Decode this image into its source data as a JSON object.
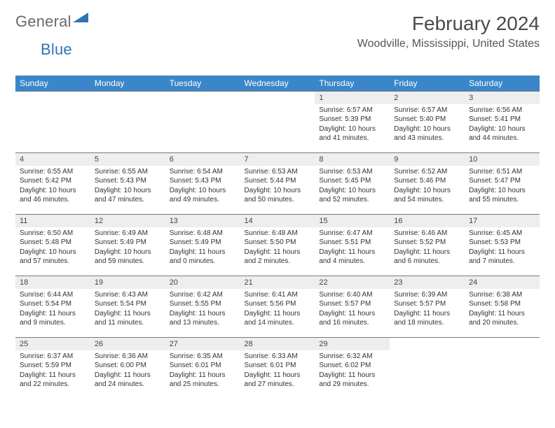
{
  "logo": {
    "word1": "General",
    "word2": "Blue",
    "triangle_color": "#2f74b5",
    "text_color_gray": "#6a6a6a"
  },
  "header": {
    "month_title": "February 2024",
    "location": "Woodville, Mississippi, United States"
  },
  "colors": {
    "header_bg": "#3a86c8",
    "header_text": "#ffffff",
    "daynum_bg": "#eeeeee",
    "cell_border": "#7a7a7a"
  },
  "day_labels": [
    "Sunday",
    "Monday",
    "Tuesday",
    "Wednesday",
    "Thursday",
    "Friday",
    "Saturday"
  ],
  "weeks": [
    [
      {
        "n": "",
        "sr": "",
        "ss": "",
        "dl": ""
      },
      {
        "n": "",
        "sr": "",
        "ss": "",
        "dl": ""
      },
      {
        "n": "",
        "sr": "",
        "ss": "",
        "dl": ""
      },
      {
        "n": "",
        "sr": "",
        "ss": "",
        "dl": ""
      },
      {
        "n": "1",
        "sr": "Sunrise: 6:57 AM",
        "ss": "Sunset: 5:39 PM",
        "dl": "Daylight: 10 hours and 41 minutes."
      },
      {
        "n": "2",
        "sr": "Sunrise: 6:57 AM",
        "ss": "Sunset: 5:40 PM",
        "dl": "Daylight: 10 hours and 43 minutes."
      },
      {
        "n": "3",
        "sr": "Sunrise: 6:56 AM",
        "ss": "Sunset: 5:41 PM",
        "dl": "Daylight: 10 hours and 44 minutes."
      }
    ],
    [
      {
        "n": "4",
        "sr": "Sunrise: 6:55 AM",
        "ss": "Sunset: 5:42 PM",
        "dl": "Daylight: 10 hours and 46 minutes."
      },
      {
        "n": "5",
        "sr": "Sunrise: 6:55 AM",
        "ss": "Sunset: 5:43 PM",
        "dl": "Daylight: 10 hours and 47 minutes."
      },
      {
        "n": "6",
        "sr": "Sunrise: 6:54 AM",
        "ss": "Sunset: 5:43 PM",
        "dl": "Daylight: 10 hours and 49 minutes."
      },
      {
        "n": "7",
        "sr": "Sunrise: 6:53 AM",
        "ss": "Sunset: 5:44 PM",
        "dl": "Daylight: 10 hours and 50 minutes."
      },
      {
        "n": "8",
        "sr": "Sunrise: 6:53 AM",
        "ss": "Sunset: 5:45 PM",
        "dl": "Daylight: 10 hours and 52 minutes."
      },
      {
        "n": "9",
        "sr": "Sunrise: 6:52 AM",
        "ss": "Sunset: 5:46 PM",
        "dl": "Daylight: 10 hours and 54 minutes."
      },
      {
        "n": "10",
        "sr": "Sunrise: 6:51 AM",
        "ss": "Sunset: 5:47 PM",
        "dl": "Daylight: 10 hours and 55 minutes."
      }
    ],
    [
      {
        "n": "11",
        "sr": "Sunrise: 6:50 AM",
        "ss": "Sunset: 5:48 PM",
        "dl": "Daylight: 10 hours and 57 minutes."
      },
      {
        "n": "12",
        "sr": "Sunrise: 6:49 AM",
        "ss": "Sunset: 5:49 PM",
        "dl": "Daylight: 10 hours and 59 minutes."
      },
      {
        "n": "13",
        "sr": "Sunrise: 6:48 AM",
        "ss": "Sunset: 5:49 PM",
        "dl": "Daylight: 11 hours and 0 minutes."
      },
      {
        "n": "14",
        "sr": "Sunrise: 6:48 AM",
        "ss": "Sunset: 5:50 PM",
        "dl": "Daylight: 11 hours and 2 minutes."
      },
      {
        "n": "15",
        "sr": "Sunrise: 6:47 AM",
        "ss": "Sunset: 5:51 PM",
        "dl": "Daylight: 11 hours and 4 minutes."
      },
      {
        "n": "16",
        "sr": "Sunrise: 6:46 AM",
        "ss": "Sunset: 5:52 PM",
        "dl": "Daylight: 11 hours and 6 minutes."
      },
      {
        "n": "17",
        "sr": "Sunrise: 6:45 AM",
        "ss": "Sunset: 5:53 PM",
        "dl": "Daylight: 11 hours and 7 minutes."
      }
    ],
    [
      {
        "n": "18",
        "sr": "Sunrise: 6:44 AM",
        "ss": "Sunset: 5:54 PM",
        "dl": "Daylight: 11 hours and 9 minutes."
      },
      {
        "n": "19",
        "sr": "Sunrise: 6:43 AM",
        "ss": "Sunset: 5:54 PM",
        "dl": "Daylight: 11 hours and 11 minutes."
      },
      {
        "n": "20",
        "sr": "Sunrise: 6:42 AM",
        "ss": "Sunset: 5:55 PM",
        "dl": "Daylight: 11 hours and 13 minutes."
      },
      {
        "n": "21",
        "sr": "Sunrise: 6:41 AM",
        "ss": "Sunset: 5:56 PM",
        "dl": "Daylight: 11 hours and 14 minutes."
      },
      {
        "n": "22",
        "sr": "Sunrise: 6:40 AM",
        "ss": "Sunset: 5:57 PM",
        "dl": "Daylight: 11 hours and 16 minutes."
      },
      {
        "n": "23",
        "sr": "Sunrise: 6:39 AM",
        "ss": "Sunset: 5:57 PM",
        "dl": "Daylight: 11 hours and 18 minutes."
      },
      {
        "n": "24",
        "sr": "Sunrise: 6:38 AM",
        "ss": "Sunset: 5:58 PM",
        "dl": "Daylight: 11 hours and 20 minutes."
      }
    ],
    [
      {
        "n": "25",
        "sr": "Sunrise: 6:37 AM",
        "ss": "Sunset: 5:59 PM",
        "dl": "Daylight: 11 hours and 22 minutes."
      },
      {
        "n": "26",
        "sr": "Sunrise: 6:36 AM",
        "ss": "Sunset: 6:00 PM",
        "dl": "Daylight: 11 hours and 24 minutes."
      },
      {
        "n": "27",
        "sr": "Sunrise: 6:35 AM",
        "ss": "Sunset: 6:01 PM",
        "dl": "Daylight: 11 hours and 25 minutes."
      },
      {
        "n": "28",
        "sr": "Sunrise: 6:33 AM",
        "ss": "Sunset: 6:01 PM",
        "dl": "Daylight: 11 hours and 27 minutes."
      },
      {
        "n": "29",
        "sr": "Sunrise: 6:32 AM",
        "ss": "Sunset: 6:02 PM",
        "dl": "Daylight: 11 hours and 29 minutes."
      },
      {
        "n": "",
        "sr": "",
        "ss": "",
        "dl": ""
      },
      {
        "n": "",
        "sr": "",
        "ss": "",
        "dl": ""
      }
    ]
  ]
}
